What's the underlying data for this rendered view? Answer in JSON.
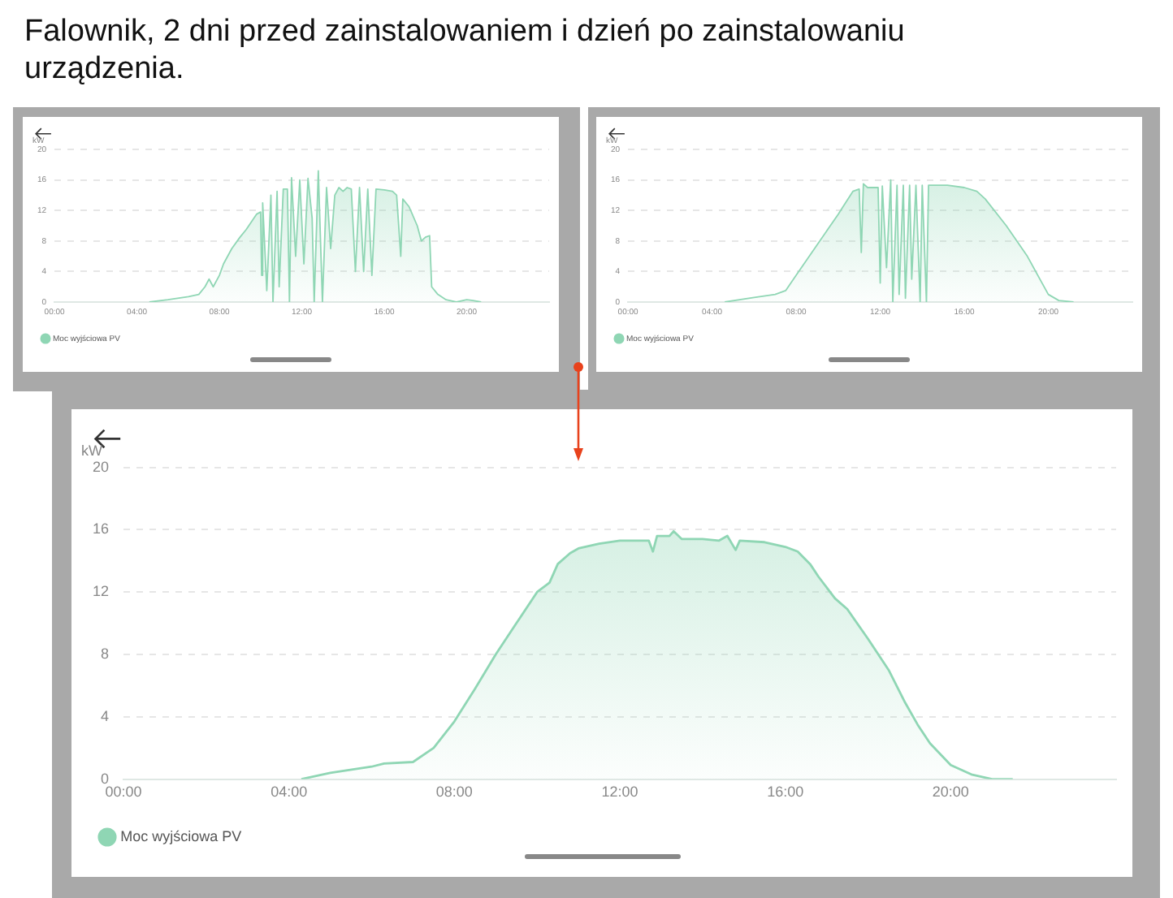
{
  "chart_data": [
    {
      "type": "area",
      "title": "Falownik, 2 dni przed zainstalowaniem i dzień po zainstalowaniu urządzenia.",
      "ylabel": "kW",
      "xlim": [
        0,
        24
      ],
      "ylim": [
        0,
        20
      ],
      "xticks": [
        {
          "value": 0,
          "label": "00:00"
        },
        {
          "value": 4,
          "label": "04:00"
        },
        {
          "value": 8,
          "label": "08:00"
        },
        {
          "value": 12,
          "label": "12:00"
        },
        {
          "value": 16,
          "label": "16:00"
        },
        {
          "value": 20,
          "label": "20:00"
        }
      ],
      "yticks": [
        0,
        4,
        8,
        12,
        16,
        20
      ],
      "grid": "y",
      "legend": "bottom left",
      "marker": "none",
      "series": [
        {
          "name": "Moc wyjściowa PV",
          "color": "#8fd6b4",
          "x": [
            4.6,
            5.5,
            6.5,
            7,
            7.3,
            7.5,
            7.7,
            8,
            8.2,
            8.6,
            9,
            9.3,
            9.8,
            10.0,
            10.05,
            10.1,
            10.3,
            10.5,
            10.6,
            10.8,
            10.9,
            11.1,
            11.3,
            11.4,
            11.5,
            11.7,
            11.9,
            12.1,
            12.3,
            12.5,
            12.6,
            12.8,
            13.0,
            13.2,
            13.4,
            13.6,
            13.8,
            14.0,
            14.2,
            14.4,
            14.6,
            14.8,
            15.0,
            15.2,
            15.4,
            15.6,
            16.0,
            16.4,
            16.6,
            16.8,
            16.9,
            17.2,
            17.6,
            17.8,
            18.0,
            18.2,
            18.3,
            18.6,
            19,
            19.5,
            20,
            20.3,
            20.7
          ],
          "values": [
            0,
            0.3,
            0.7,
            1.0,
            2.0,
            3.0,
            2.0,
            3.5,
            5.0,
            7.0,
            8.5,
            9.5,
            11.5,
            11.8,
            3.5,
            13,
            1.5,
            14,
            0,
            14.5,
            2,
            14.8,
            14.8,
            0,
            16.3,
            6,
            16,
            5,
            16.2,
            11,
            0,
            17.2,
            0,
            15,
            7,
            14,
            15,
            14.5,
            15,
            14.8,
            4,
            15,
            4,
            14.8,
            3.5,
            14.8,
            14.7,
            14.5,
            14,
            6,
            13.5,
            12.5,
            10,
            8,
            8.5,
            8.7,
            2,
            1,
            0.3,
            0,
            0.3,
            0.2,
            0
          ]
        }
      ]
    },
    {
      "type": "area",
      "ylabel": "kW",
      "xlim": [
        0,
        24
      ],
      "ylim": [
        0,
        20
      ],
      "xticks": [
        {
          "value": 0,
          "label": "00:00"
        },
        {
          "value": 4,
          "label": "04:00"
        },
        {
          "value": 8,
          "label": "08:00"
        },
        {
          "value": 12,
          "label": "12:00"
        },
        {
          "value": 16,
          "label": "16:00"
        },
        {
          "value": 20,
          "label": "20:00"
        }
      ],
      "yticks": [
        0,
        4,
        8,
        12,
        16,
        20
      ],
      "grid": "y",
      "legend": "bottom left",
      "marker": "none",
      "series": [
        {
          "name": "Moc wyjściowa PV",
          "color": "#8fd6b4",
          "x": [
            4.6,
            6,
            7,
            7.5,
            8,
            9,
            10,
            10.7,
            11.0,
            11.1,
            11.2,
            11.4,
            11.9,
            12.0,
            12.1,
            12.3,
            12.5,
            12.6,
            12.8,
            12.9,
            13.1,
            13.2,
            13.4,
            13.5,
            13.7,
            13.9,
            14.0,
            14.2,
            14.3,
            14.6,
            15.2,
            16,
            16.6,
            17,
            18,
            19,
            20,
            20.5,
            21.2
          ],
          "values": [
            0,
            0.6,
            1.0,
            1.5,
            3.5,
            7.5,
            11.5,
            14.5,
            14.8,
            6.5,
            15.5,
            15,
            15,
            2.5,
            15.2,
            4.5,
            16,
            0,
            15.3,
            1,
            15.3,
            0.5,
            15.3,
            3,
            15.3,
            0,
            15.3,
            0,
            15.3,
            15.3,
            15.3,
            15,
            14.5,
            13.5,
            10,
            6,
            1,
            0.2,
            0
          ]
        }
      ]
    },
    {
      "type": "area",
      "ylabel": "kW",
      "xlim": [
        0,
        24
      ],
      "ylim": [
        0,
        20
      ],
      "xticks": [
        {
          "value": 0,
          "label": "00:00"
        },
        {
          "value": 4,
          "label": "04:00"
        },
        {
          "value": 8,
          "label": "08:00"
        },
        {
          "value": 12,
          "label": "12:00"
        },
        {
          "value": 16,
          "label": "16:00"
        },
        {
          "value": 20,
          "label": "20:00"
        }
      ],
      "yticks": [
        0,
        4,
        8,
        12,
        16,
        20
      ],
      "grid": "y",
      "legend": "bottom left",
      "marker": "none",
      "series": [
        {
          "name": "Moc wyjściowa PV",
          "color": "#8fd6b4",
          "x": [
            4.3,
            5,
            6,
            6.3,
            7,
            7.5,
            8,
            8.5,
            9,
            9.5,
            10,
            10.3,
            10.5,
            10.8,
            11,
            11.5,
            12,
            12.7,
            12.8,
            12.9,
            13.2,
            13.3,
            13.5,
            14,
            14.4,
            14.6,
            14.8,
            14.9,
            15.5,
            16,
            16.3,
            16.6,
            16.8,
            17.2,
            17.5,
            18,
            18.5,
            18.9,
            19.2,
            19.5,
            20,
            20.5,
            21.0,
            21.5
          ],
          "values": [
            0,
            0.4,
            0.8,
            1.0,
            1.1,
            2.0,
            3.7,
            5.8,
            8,
            10,
            12,
            12.6,
            13.8,
            14.5,
            14.8,
            15.1,
            15.3,
            15.3,
            14.6,
            15.6,
            15.6,
            15.9,
            15.4,
            15.4,
            15.3,
            15.6,
            14.7,
            15.3,
            15.2,
            14.9,
            14.6,
            13.8,
            13,
            11.6,
            10.9,
            9,
            7,
            4.9,
            3.5,
            2.3,
            0.9,
            0.3,
            0,
            0
          ]
        }
      ]
    }
  ]
}
